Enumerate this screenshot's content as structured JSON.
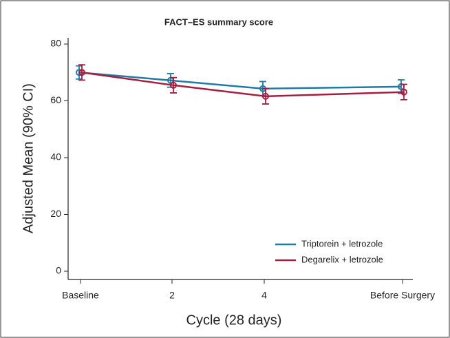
{
  "chart_data": {
    "type": "line",
    "title": "FACT–ES summary score",
    "x_label": "Cycle (28 days)",
    "y_label": "Adjusted Mean (90% CI)",
    "categories": [
      "Baseline",
      "2",
      "4",
      "Before Surgery"
    ],
    "series": [
      {
        "name": "Triptorein + letrozole",
        "color": "#1f7aa8",
        "values": [
          70,
          67.2,
          64.3,
          65
        ],
        "errors": [
          2.3,
          2.4,
          2.5,
          2.4
        ]
      },
      {
        "name": "Degarelix + letrozole",
        "color": "#a51e3f",
        "values": [
          70,
          65.5,
          61.6,
          63.1
        ],
        "errors": [
          2.7,
          2.7,
          2.7,
          2.7
        ]
      }
    ],
    "ylim": [
      0,
      80
    ],
    "yticks": [
      0,
      20,
      40,
      60,
      80
    ],
    "legend": "lower right"
  }
}
